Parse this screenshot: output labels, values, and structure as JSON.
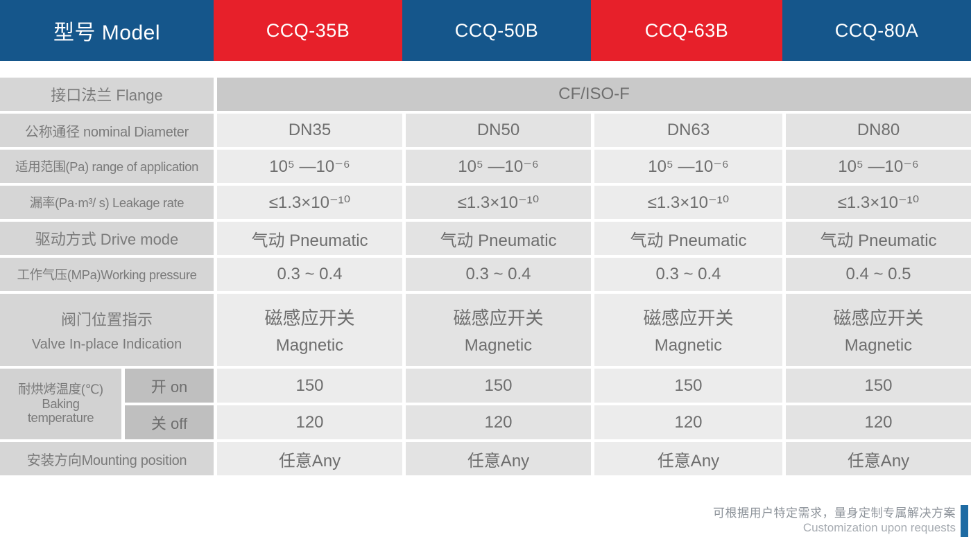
{
  "header": {
    "model_label": "型号 Model",
    "models": [
      "CCQ-35B",
      "CCQ-50B",
      "CCQ-63B",
      "CCQ-80A"
    ]
  },
  "table": {
    "flange": {
      "label": "接口法兰 Flange",
      "value": "CF/ISO-F"
    },
    "diameter": {
      "label": "公称通径 nominal Diameter",
      "values": [
        "DN35",
        "DN50",
        "DN63",
        "DN80"
      ]
    },
    "range": {
      "label": "适用范围(Pa) range of application",
      "values": [
        "10⁵ —10⁻⁶",
        "10⁵ —10⁻⁶",
        "10⁵ —10⁻⁶",
        "10⁵ —10⁻⁶"
      ]
    },
    "leakage": {
      "label": "漏率(Pa·m³/ s) Leakage rate",
      "values": [
        "≤1.3×10⁻¹⁰",
        "≤1.3×10⁻¹⁰",
        "≤1.3×10⁻¹⁰",
        "≤1.3×10⁻¹⁰"
      ]
    },
    "drive": {
      "label": "驱动方式 Drive mode",
      "values": [
        "气动 Pneumatic",
        "气动 Pneumatic",
        "气动 Pneumatic",
        "气动 Pneumatic"
      ]
    },
    "pressure": {
      "label": "工作气压(MPa)Working pressure",
      "values": [
        "0.3 ~ 0.4",
        "0.3 ~ 0.4",
        "0.3 ~ 0.4",
        "0.4 ~ 0.5"
      ]
    },
    "valve": {
      "label_line1": "阀门位置指示",
      "label_line2": "Valve In-place Indication",
      "values": [
        [
          "磁感应开关",
          "Magnetic"
        ],
        [
          "磁感应开关",
          "Magnetic"
        ],
        [
          "磁感应开关",
          "Magnetic"
        ],
        [
          "磁感应开关",
          "Magnetic"
        ]
      ]
    },
    "baking": {
      "label_line1": "耐烘烤温度(℃)",
      "label_line2": "Baking",
      "label_line3": "temperature",
      "on": {
        "label": "开 on",
        "values": [
          "150",
          "150",
          "150",
          "150"
        ]
      },
      "off": {
        "label": "关 off",
        "values": [
          "120",
          "120",
          "120",
          "120"
        ]
      }
    },
    "mounting": {
      "label": "安装方向Mounting position",
      "values": [
        "任意Any",
        "任意Any",
        "任意Any",
        "任意Any"
      ]
    }
  },
  "footer": {
    "note_cn": "可根据用户特定需求，量身定制专属解决方案",
    "note_en": "Customization upon requests"
  },
  "colors": {
    "header_blue": "#15568b",
    "header_red": "#e7202a",
    "label_cell": "#d6d6d6",
    "sublabel_cell": "#bfbfbf",
    "merged_cell": "#c9c9c9",
    "value_cell_light": "#ececec",
    "value_cell_dark": "#e3e3e3",
    "label_text": "#7a7a7a",
    "value_text": "#6e6e6e",
    "footer_text_cn": "#8d939a",
    "footer_text_en": "#a6abb1",
    "footer_bar": "#1e6ba3"
  }
}
